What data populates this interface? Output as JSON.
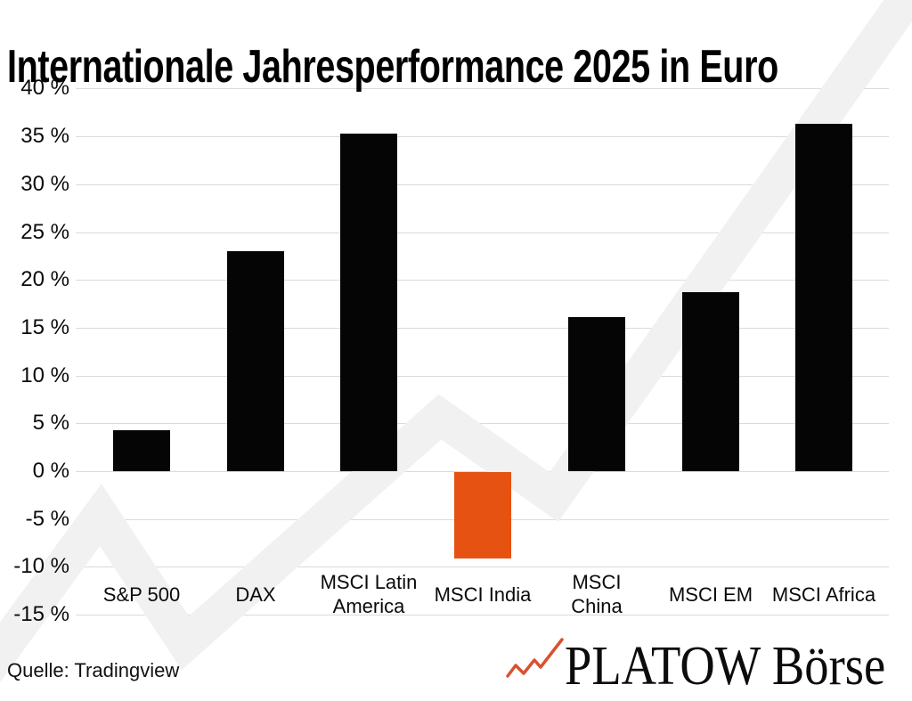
{
  "title": "Internationale Jahresperformance 2025 in Euro",
  "source": "Quelle: Tradingview",
  "logo": {
    "text": "PLATOW Börse",
    "zigzag_icon": "rising-stock-line-icon",
    "zigzag_color": "#d9512f"
  },
  "colors": {
    "bar_positive": "#050505",
    "bar_negative": "#e65211",
    "gridline": "#dadada",
    "watermark": "#f1f1f1",
    "text": "#0a0a0a"
  },
  "chart_data": {
    "type": "bar",
    "title": "Internationale Jahresperformance 2025 in Euro",
    "categories": [
      "S&P 500",
      "DAX",
      "MSCI Latin\nAmerica",
      "MSCI India",
      "MSCI\nChina",
      "MSCI EM",
      "MSCI Africa"
    ],
    "values": [
      4.3,
      23.0,
      35.3,
      -9.0,
      16.1,
      18.7,
      36.3
    ],
    "unit": "%",
    "xlabel": "",
    "ylabel": "",
    "ylim": [
      -15,
      40
    ],
    "ytick_step": 5,
    "yticks": [
      40,
      35,
      30,
      25,
      20,
      15,
      10,
      5,
      0,
      -5,
      -10,
      -15
    ],
    "ytick_suffix": " %",
    "grid": true,
    "legend": false,
    "note": "negative values shown in orange, positive in black"
  }
}
